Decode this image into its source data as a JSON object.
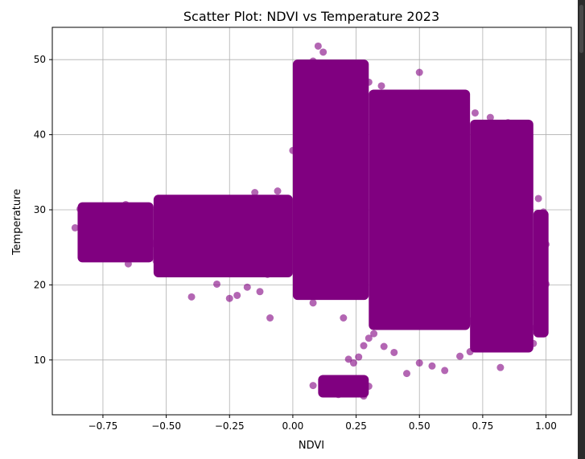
{
  "chart_data": {
    "type": "scatter",
    "title": "Scatter Plot: NDVI vs Temperature 2023",
    "xlabel": "NDVI",
    "ylabel": "Temperature",
    "xlim": [
      -0.95,
      1.1
    ],
    "ylim": [
      2.7,
      54.3
    ],
    "xticks": [
      -0.75,
      -0.5,
      -0.25,
      0.0,
      0.25,
      0.5,
      0.75,
      1.0
    ],
    "xtick_labels": [
      "−0.75",
      "−0.50",
      "−0.25",
      "0.00",
      "0.25",
      "0.50",
      "0.75",
      "1.00"
    ],
    "yticks": [
      10,
      20,
      30,
      40,
      50
    ],
    "ytick_labels": [
      "10",
      "20",
      "30",
      "40",
      "50"
    ],
    "grid": true,
    "marker_color": "#800080",
    "series": [
      {
        "description_of_density": "very dense cloud",
        "regions": [
          {
            "x_range": [
              -0.85,
              -0.55
            ],
            "y_range": [
              23,
              31
            ]
          },
          {
            "x_range": [
              -0.55,
              0.0
            ],
            "y_range": [
              21,
              32
            ]
          },
          {
            "x_range": [
              0.0,
              0.3
            ],
            "y_range": [
              18,
              50
            ]
          },
          {
            "x_range": [
              0.3,
              0.7
            ],
            "y_range": [
              14,
              46
            ]
          },
          {
            "x_range": [
              0.7,
              0.95
            ],
            "y_range": [
              11,
              42
            ]
          },
          {
            "x_range": [
              0.95,
              1.01
            ],
            "y_range": [
              13,
              30
            ]
          },
          {
            "x_range": [
              0.1,
              0.3
            ],
            "y_range": [
              5,
              8
            ]
          }
        ],
        "points": [
          [
            -0.84,
            30.1
          ],
          [
            -0.86,
            27.6
          ],
          [
            -0.83,
            26.0
          ],
          [
            -0.82,
            24.5
          ],
          [
            -0.78,
            24.3
          ],
          [
            -0.75,
            24.5
          ],
          [
            -0.72,
            25.0
          ],
          [
            -0.7,
            26.5
          ],
          [
            -0.68,
            27.1
          ],
          [
            -0.67,
            29.8
          ],
          [
            -0.66,
            30.7
          ],
          [
            -0.65,
            22.8
          ],
          [
            -0.64,
            25.9
          ],
          [
            -0.63,
            27.4
          ],
          [
            -0.6,
            26.3
          ],
          [
            -0.58,
            28.2
          ],
          [
            -0.55,
            25.5
          ],
          [
            -0.54,
            23.2
          ],
          [
            -0.52,
            28.9
          ],
          [
            -0.5,
            30.4
          ],
          [
            -0.45,
            30.8
          ],
          [
            -0.4,
            18.4
          ],
          [
            -0.35,
            30.9
          ],
          [
            -0.33,
            21.8
          ],
          [
            -0.3,
            20.1
          ],
          [
            -0.25,
            18.2
          ],
          [
            -0.22,
            18.6
          ],
          [
            -0.18,
            19.7
          ],
          [
            -0.13,
            19.1
          ],
          [
            -0.1,
            21.4
          ],
          [
            -0.05,
            22.0
          ],
          [
            -0.09,
            15.6
          ],
          [
            -0.15,
            32.3
          ],
          [
            -0.06,
            32.5
          ],
          [
            0.0,
            37.9
          ],
          [
            0.02,
            20.4
          ],
          [
            0.05,
            18.6
          ],
          [
            0.08,
            17.6
          ],
          [
            0.13,
            19.9
          ],
          [
            0.17,
            20.0
          ],
          [
            0.2,
            15.6
          ],
          [
            0.22,
            10.1
          ],
          [
            0.24,
            9.6
          ],
          [
            0.26,
            10.4
          ],
          [
            0.28,
            11.9
          ],
          [
            0.3,
            12.9
          ],
          [
            0.32,
            13.5
          ],
          [
            0.36,
            11.8
          ],
          [
            0.4,
            11.0
          ],
          [
            0.45,
            8.2
          ],
          [
            0.5,
            9.6
          ],
          [
            0.55,
            9.2
          ],
          [
            0.6,
            8.6
          ],
          [
            0.66,
            10.5
          ],
          [
            0.7,
            11.1
          ],
          [
            0.78,
            11.6
          ],
          [
            0.82,
            9.0
          ],
          [
            0.86,
            11.9
          ],
          [
            0.9,
            13.4
          ],
          [
            0.95,
            12.2
          ],
          [
            0.08,
            6.6
          ],
          [
            0.12,
            6.9
          ],
          [
            0.15,
            6.0
          ],
          [
            0.18,
            5.4
          ],
          [
            0.2,
            6.3
          ],
          [
            0.22,
            7.3
          ],
          [
            0.25,
            5.6
          ],
          [
            0.28,
            5.2
          ],
          [
            0.3,
            6.5
          ],
          [
            0.16,
            7.4
          ],
          [
            0.02,
            44.6
          ],
          [
            0.05,
            47.5
          ],
          [
            0.08,
            49.8
          ],
          [
            0.1,
            51.8
          ],
          [
            0.12,
            51.0
          ],
          [
            0.14,
            48.4
          ],
          [
            0.2,
            47.6
          ],
          [
            0.3,
            47.0
          ],
          [
            0.35,
            46.5
          ],
          [
            0.5,
            48.3
          ],
          [
            0.58,
            44.7
          ],
          [
            0.65,
            43.0
          ],
          [
            0.72,
            42.9
          ],
          [
            0.78,
            42.3
          ],
          [
            0.85,
            41.6
          ],
          [
            0.88,
            40.3
          ],
          [
            0.92,
            36.5
          ],
          [
            0.97,
            31.5
          ],
          [
            0.99,
            29.7
          ],
          [
            1.0,
            25.4
          ],
          [
            1.0,
            20.1
          ],
          [
            0.98,
            16.7
          ],
          [
            0.94,
            14.3
          ],
          [
            0.85,
            12.5
          ],
          [
            0.76,
            14.1
          ],
          [
            0.7,
            15.2
          ],
          [
            0.6,
            14.6
          ],
          [
            0.55,
            17.9
          ],
          [
            0.45,
            18.3
          ],
          [
            0.38,
            19.9
          ]
        ]
      }
    ]
  }
}
